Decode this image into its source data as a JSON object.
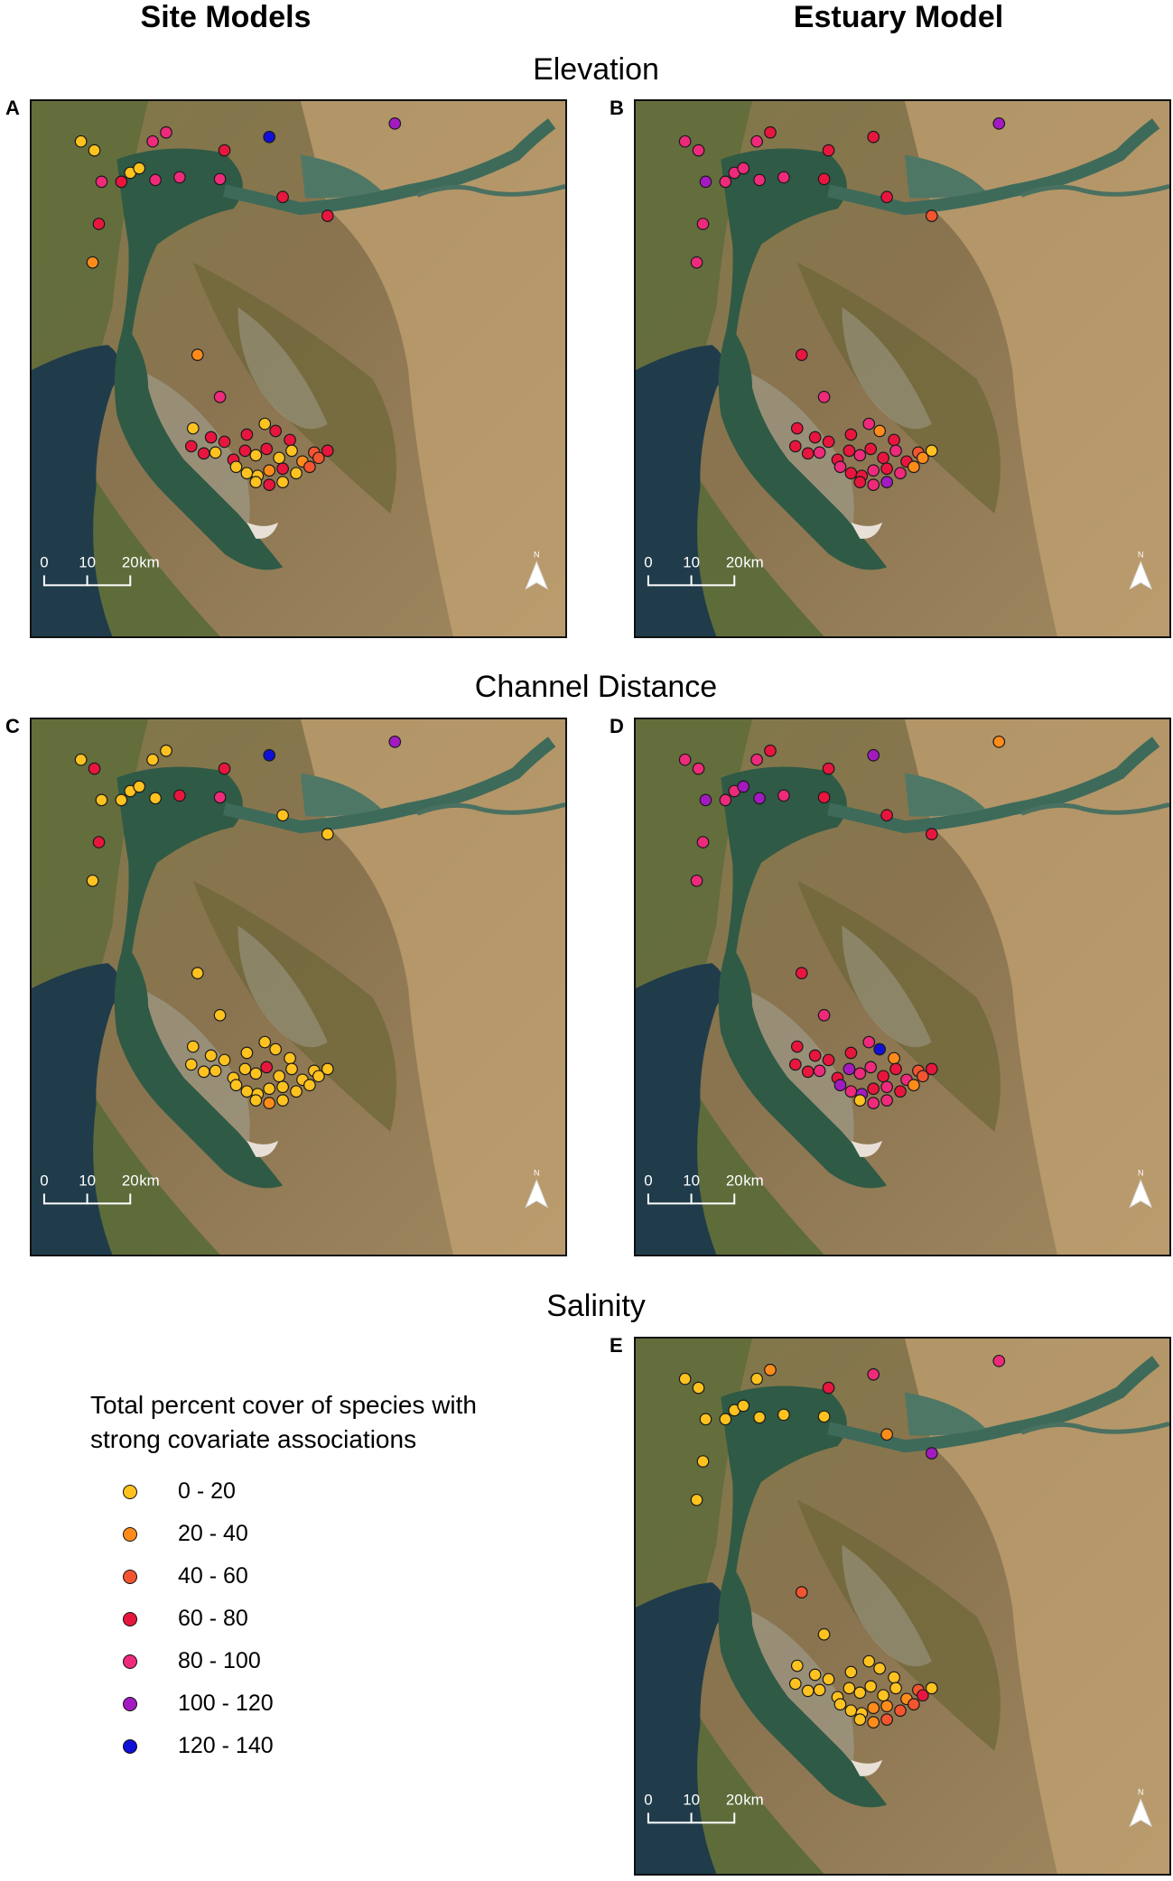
{
  "columns": [
    "Site Models",
    "Estuary Model"
  ],
  "rows": [
    "Elevation",
    "Channel Distance",
    "Salinity"
  ],
  "panels": [
    {
      "letter": "A",
      "row": 0,
      "col": 0
    },
    {
      "letter": "B",
      "row": 0,
      "col": 1
    },
    {
      "letter": "C",
      "row": 1,
      "col": 0
    },
    {
      "letter": "D",
      "row": 1,
      "col": 1
    },
    {
      "letter": "E",
      "row": 2,
      "col": 1
    }
  ],
  "scalebar": {
    "ticks": [
      "0",
      "10",
      "20"
    ],
    "unit": "km"
  },
  "north_arrow": {
    "label": "N"
  },
  "legend": {
    "title_line1": "Total percent cover of species with",
    "title_line2": "strong covariate associations",
    "classes": [
      {
        "label": "0 - 20",
        "color": "#ffc21e"
      },
      {
        "label": "20 - 40",
        "color": "#ff8c1a"
      },
      {
        "label": "40 - 60",
        "color": "#f25530"
      },
      {
        "label": "60 - 80",
        "color": "#e8163e"
      },
      {
        "label": "80 - 100",
        "color": "#ee2a7b"
      },
      {
        "label": "100 - 120",
        "color": "#a31ac2"
      },
      {
        "label": "120 - 140",
        "color": "#1010d8"
      }
    ]
  },
  "sites": [
    [
      55,
      45
    ],
    [
      70,
      55
    ],
    [
      135,
      45
    ],
    [
      150,
      35
    ],
    [
      215,
      55
    ],
    [
      265,
      40
    ],
    [
      78,
      90
    ],
    [
      100,
      90
    ],
    [
      110,
      80
    ],
    [
      120,
      75
    ],
    [
      138,
      88
    ],
    [
      165,
      85
    ],
    [
      210,
      87
    ],
    [
      75,
      137
    ],
    [
      280,
      107
    ],
    [
      68,
      180
    ],
    [
      405,
      25
    ],
    [
      330,
      128
    ],
    [
      185,
      283
    ],
    [
      210,
      330
    ],
    [
      180,
      365
    ],
    [
      200,
      375
    ],
    [
      215,
      380
    ],
    [
      240,
      372
    ],
    [
      260,
      360
    ],
    [
      272,
      368
    ],
    [
      288,
      378
    ],
    [
      178,
      385
    ],
    [
      192,
      393
    ],
    [
      205,
      392
    ],
    [
      225,
      400
    ],
    [
      238,
      390
    ],
    [
      250,
      395
    ],
    [
      262,
      388
    ],
    [
      276,
      398
    ],
    [
      290,
      390
    ],
    [
      302,
      402
    ],
    [
      315,
      392
    ],
    [
      228,
      408
    ],
    [
      240,
      415
    ],
    [
      252,
      418
    ],
    [
      265,
      412
    ],
    [
      280,
      410
    ],
    [
      295,
      415
    ],
    [
      310,
      408
    ],
    [
      320,
      398
    ],
    [
      330,
      390
    ],
    [
      250,
      425
    ],
    [
      265,
      428
    ],
    [
      280,
      425
    ]
  ],
  "site_classes": {
    "A": [
      0,
      0,
      4,
      4,
      3,
      6,
      4,
      3,
      0,
      0,
      4,
      4,
      4,
      3,
      3,
      1,
      5,
      3,
      1,
      4,
      0,
      3,
      3,
      3,
      0,
      3,
      3,
      3,
      3,
      0,
      3,
      3,
      0,
      3,
      0,
      0,
      1,
      2,
      0,
      0,
      0,
      1,
      3,
      0,
      2,
      2,
      3,
      0,
      3,
      0
    ],
    "B": [
      4,
      4,
      4,
      3,
      3,
      3,
      5,
      4,
      4,
      4,
      4,
      4,
      3,
      4,
      3,
      4,
      5,
      2,
      3,
      4,
      3,
      3,
      3,
      3,
      4,
      1,
      3,
      3,
      3,
      4,
      3,
      3,
      4,
      3,
      3,
      4,
      3,
      2,
      4,
      3,
      3,
      4,
      3,
      4,
      1,
      1,
      0,
      3,
      4,
      5
    ],
    "C": [
      0,
      3,
      0,
      0,
      3,
      6,
      0,
      0,
      0,
      0,
      0,
      3,
      4,
      3,
      0,
      0,
      5,
      0,
      0,
      0,
      0,
      0,
      0,
      0,
      0,
      0,
      0,
      0,
      0,
      0,
      0,
      0,
      0,
      3,
      0,
      0,
      0,
      0,
      0,
      0,
      0,
      0,
      0,
      0,
      0,
      0,
      0,
      0,
      1,
      0
    ],
    "D": [
      4,
      4,
      4,
      3,
      3,
      5,
      5,
      4,
      4,
      5,
      5,
      4,
      3,
      4,
      3,
      4,
      1,
      3,
      3,
      4,
      3,
      3,
      3,
      3,
      4,
      6,
      1,
      3,
      3,
      4,
      3,
      5,
      4,
      4,
      3,
      3,
      4,
      2,
      5,
      4,
      5,
      3,
      4,
      3,
      1,
      2,
      3,
      0,
      4,
      4
    ],
    "E": [
      0,
      0,
      0,
      1,
      3,
      4,
      0,
      0,
      0,
      0,
      0,
      0,
      0,
      0,
      1,
      0,
      4,
      5,
      2,
      0,
      0,
      0,
      0,
      0,
      0,
      0,
      0,
      0,
      0,
      0,
      0,
      0,
      0,
      0,
      0,
      0,
      1,
      2,
      0,
      0,
      0,
      1,
      1,
      2,
      2,
      3,
      0,
      0,
      1,
      2
    ]
  }
}
